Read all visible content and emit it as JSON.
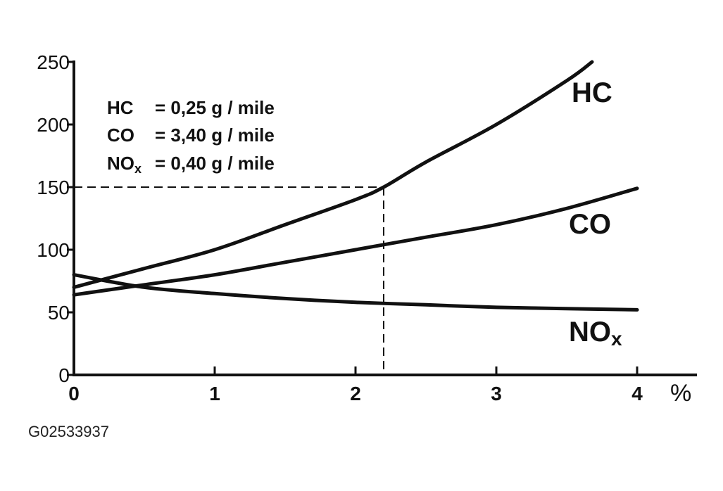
{
  "figure_id": "G02533937",
  "chart_data": {
    "type": "line",
    "x_unit": "%",
    "xlim": [
      0,
      4
    ],
    "ylim": [
      0,
      250
    ],
    "x_ticks": [
      0,
      1,
      2,
      3,
      4
    ],
    "y_ticks": [
      0,
      50,
      100,
      150,
      200,
      250
    ],
    "grid": false,
    "series": [
      {
        "name": "HC",
        "x": [
          0,
          0.5,
          1,
          1.5,
          2,
          2.2,
          2.5,
          3,
          3.5,
          3.68
        ],
        "y": [
          70,
          85,
          100,
          120,
          140,
          150,
          170,
          200,
          235,
          250
        ]
      },
      {
        "name": "CO",
        "x": [
          0,
          0.5,
          1,
          1.5,
          2,
          2.5,
          3,
          3.5,
          4
        ],
        "y": [
          64,
          72,
          80,
          90,
          100,
          110,
          120,
          133,
          149
        ]
      },
      {
        "name": "NO",
        "name_subscript": "x",
        "x": [
          0,
          0.5,
          1,
          1.5,
          2,
          2.5,
          3,
          3.5,
          4
        ],
        "y": [
          80,
          70,
          65,
          61,
          58,
          56,
          54,
          53,
          52
        ]
      }
    ],
    "reference": {
      "x": 2.2,
      "y": 150
    },
    "legend": {
      "placement": "top-left",
      "rows": [
        {
          "name": "HC",
          "sub": "",
          "value": "= 0,25 g / mile"
        },
        {
          "name": "CO",
          "sub": "",
          "value": "= 3,40 g / mile"
        },
        {
          "name": "NO",
          "sub": "x",
          "value": "= 0,40 g / mile"
        }
      ]
    }
  }
}
